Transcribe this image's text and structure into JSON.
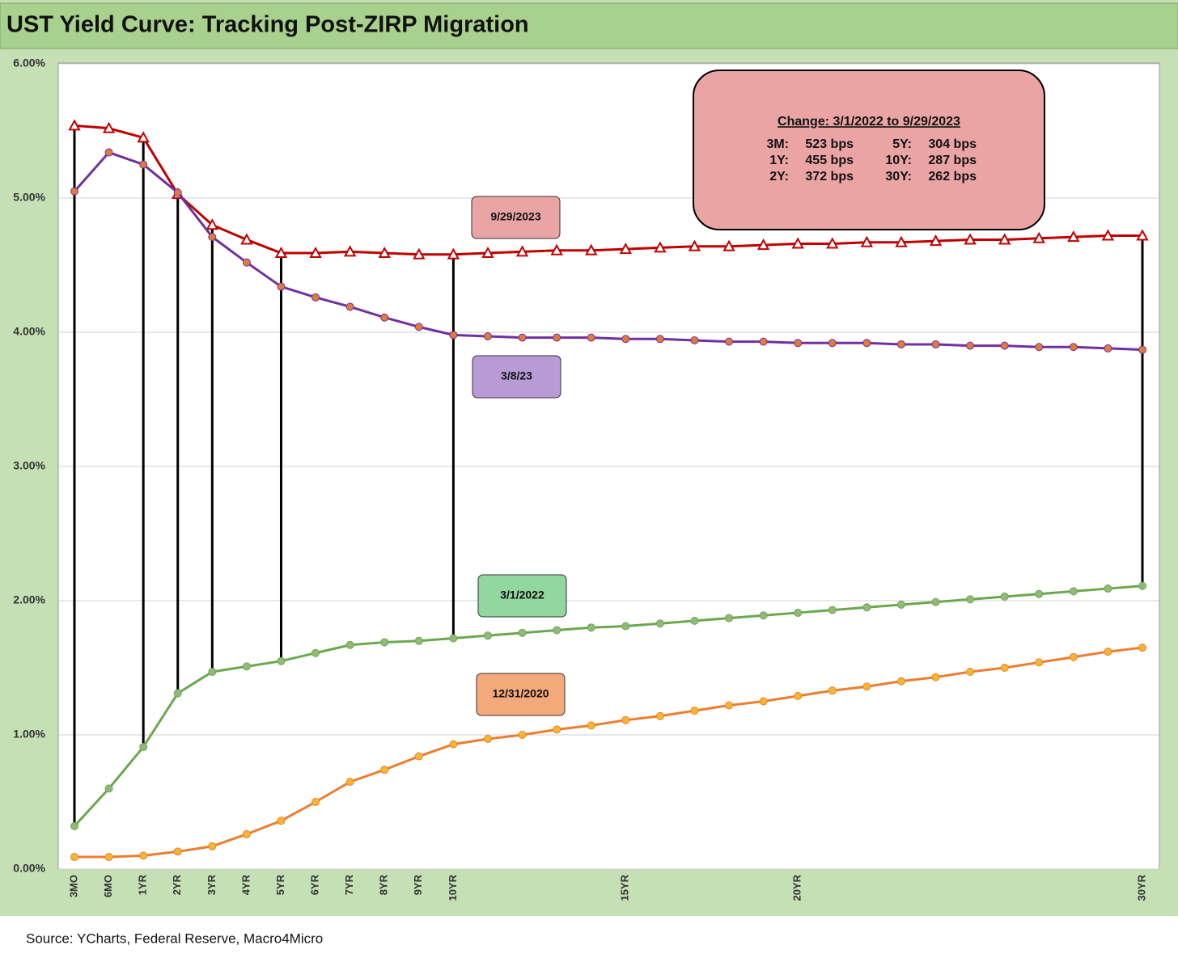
{
  "chart_data": {
    "type": "line",
    "title": "UST Yield Curve: Tracking Post-ZIRP Migration",
    "source": "Source: YCharts, Federal Reserve, Macro4Micro",
    "categories": [
      "3MO",
      "6MO",
      "1YR",
      "2YR",
      "3YR",
      "4YR",
      "5YR",
      "6YR",
      "7YR",
      "8YR",
      "9YR",
      "10YR",
      null,
      null,
      null,
      null,
      "15YR",
      null,
      null,
      null,
      null,
      "20YR",
      null,
      null,
      null,
      null,
      null,
      null,
      null,
      null,
      null,
      "30YR"
    ],
    "ylim": [
      0,
      6
    ],
    "yticks": [
      {
        "value": 0,
        "label": "0.00%"
      },
      {
        "value": 1,
        "label": "1.00%"
      },
      {
        "value": 2,
        "label": "2.00%"
      },
      {
        "value": 3,
        "label": "3.00%"
      },
      {
        "value": 4,
        "label": "4.00%"
      },
      {
        "value": 5,
        "label": "5.00%"
      },
      {
        "value": 6,
        "label": "6.00%"
      }
    ],
    "grid": true,
    "series": [
      {
        "name": "9/29/2023",
        "color": "#c00000",
        "marker": "triangle",
        "marker_color": "#c00000",
        "label_color": "#eba4a4",
        "values": [
          5.54,
          5.52,
          5.45,
          5.03,
          4.8,
          4.69,
          4.59,
          4.59,
          4.6,
          4.59,
          4.58,
          4.58,
          4.59,
          4.6,
          4.61,
          4.61,
          4.62,
          4.63,
          4.64,
          4.64,
          4.65,
          4.66,
          4.66,
          4.67,
          4.67,
          4.68,
          4.69,
          4.69,
          4.7,
          4.71,
          4.72,
          4.72
        ]
      },
      {
        "name": "3/8/23",
        "color": "#7030a0",
        "marker": "circle",
        "marker_color": "#e07b39",
        "label_color": "#b79ad6",
        "values": [
          5.05,
          5.34,
          5.25,
          5.04,
          4.71,
          4.52,
          4.34,
          4.26,
          4.19,
          4.11,
          4.04,
          3.98,
          3.97,
          3.96,
          3.96,
          3.96,
          3.95,
          3.95,
          3.94,
          3.93,
          3.93,
          3.92,
          3.92,
          3.92,
          3.91,
          3.91,
          3.9,
          3.9,
          3.89,
          3.89,
          3.88,
          3.87
        ]
      },
      {
        "name": "3/1/2022",
        "color": "#6aa84f",
        "marker": "circle",
        "marker_color": "#93b87a",
        "label_color": "#93d6a0",
        "values": [
          0.32,
          0.6,
          0.91,
          1.31,
          1.47,
          1.51,
          1.55,
          1.61,
          1.67,
          1.69,
          1.7,
          1.72,
          1.74,
          1.76,
          1.78,
          1.8,
          1.81,
          1.83,
          1.85,
          1.87,
          1.89,
          1.91,
          1.93,
          1.95,
          1.97,
          1.99,
          2.01,
          2.03,
          2.05,
          2.07,
          2.09,
          2.11
        ]
      },
      {
        "name": "12/31/2020",
        "color": "#ed7d31",
        "marker": "circle",
        "marker_color": "#f4b830",
        "label_color": "#f4a97a",
        "values": [
          0.09,
          0.09,
          0.1,
          0.13,
          0.17,
          0.26,
          0.36,
          0.5,
          0.65,
          0.74,
          0.84,
          0.93,
          0.97,
          1.0,
          1.04,
          1.07,
          1.11,
          1.14,
          1.18,
          1.22,
          1.25,
          1.29,
          1.33,
          1.36,
          1.4,
          1.43,
          1.47,
          1.5,
          1.54,
          1.58,
          1.62,
          1.65
        ]
      }
    ],
    "annotation": {
      "title": "Change: 3/1/2022 to 9/29/2023",
      "rows": [
        [
          "3M:",
          "523 bps",
          "5Y:",
          "304 bps"
        ],
        [
          "1Y:",
          "455 bps",
          "10Y:",
          "287 bps"
        ],
        [
          "2Y:",
          "372 bps",
          "30Y:",
          "262 bps"
        ]
      ]
    }
  }
}
